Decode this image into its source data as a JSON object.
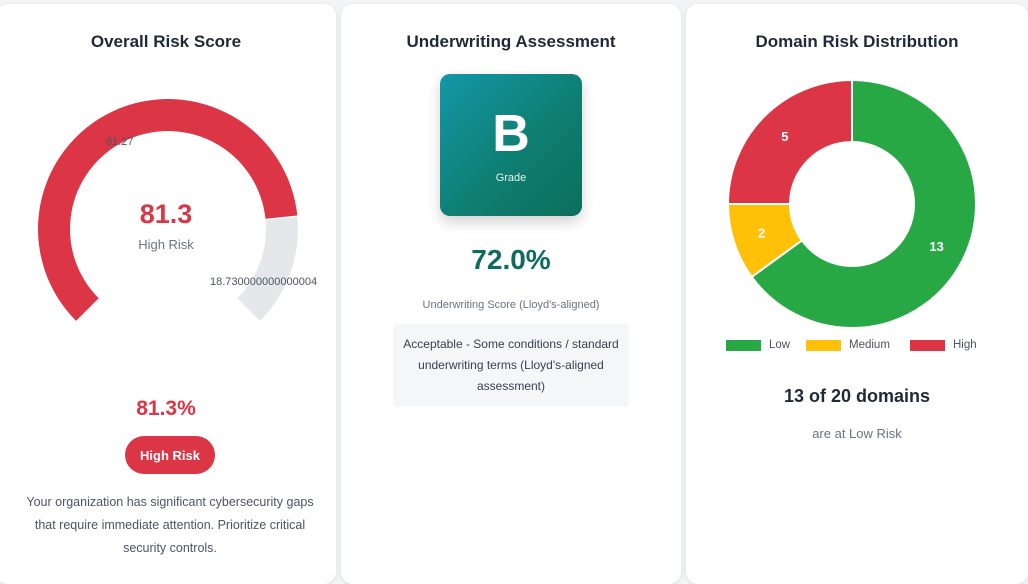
{
  "overall": {
    "title": "Overall Risk Score",
    "gauge_score_label": "81.27",
    "gauge_remaining_label": "18.730000000000004",
    "gauge_value": "81.3",
    "gauge_level": "High Risk",
    "score_fraction": 0.8127,
    "score_percent": "81.3%",
    "badge": "High Risk",
    "description": "Your organization has significant cybersecurity gaps that require immediate attention. Prioritize critical security controls.",
    "colors": {
      "score": "#dc3545",
      "remaining": "#e5e7eb"
    }
  },
  "underwriting": {
    "title": "Underwriting Assessment",
    "grade": "B",
    "grade_caption": "Grade",
    "score_percent": "72.0%",
    "score_label": "Underwriting Score (Lloyd's-aligned)",
    "note": "Acceptable - Some conditions / standard underwriting terms (Lloyd's-aligned assessment)",
    "colors": {
      "grade_start": "#1497a7",
      "grade_end": "#0b6f5a",
      "score": "#0e6b5e"
    }
  },
  "distribution": {
    "title": "Domain Risk Distribution",
    "summary": "13 of 20 domains",
    "subtext": "are at Low Risk",
    "legend": {
      "low": "Low",
      "medium": "Medium",
      "high": "High"
    }
  },
  "chart_data": {
    "type": "pie",
    "title": "Domain Risk Distribution",
    "categories": [
      "Low",
      "Medium",
      "High"
    ],
    "values": [
      13,
      2,
      5
    ],
    "colors": [
      "#28a745",
      "#ffc107",
      "#dc3545"
    ],
    "donut": true,
    "legend": "bottom"
  }
}
